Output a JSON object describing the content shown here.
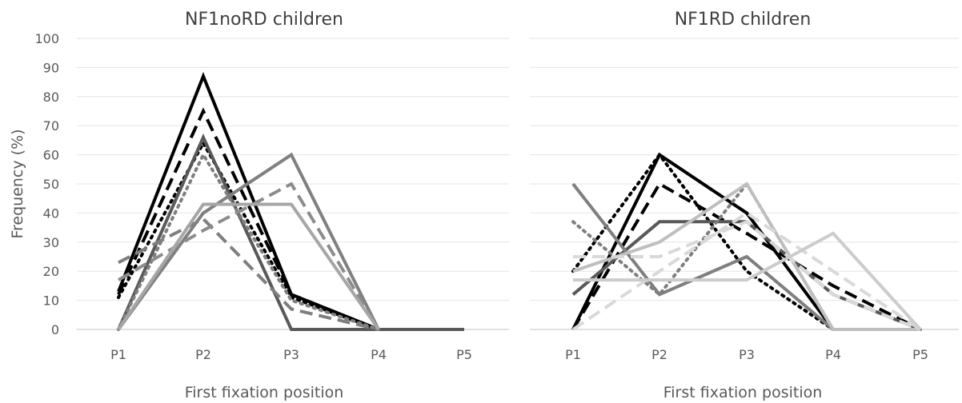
{
  "chart_data": [
    {
      "type": "line",
      "title": "NF1noRD children",
      "xlabel": "First fixation position",
      "ylabel": "Frequency (%)",
      "categories": [
        "P1",
        "P2",
        "P3",
        "P4",
        "P5"
      ],
      "ylim": [
        0,
        100
      ],
      "yticks": [
        "0",
        "10",
        "20",
        "30",
        "40",
        "50",
        "60",
        "70",
        "80",
        "90",
        "100"
      ],
      "grid": true,
      "series": [
        {
          "values": [
            13,
            87,
            12,
            0,
            0
          ],
          "color": "#000000",
          "dash": "solid"
        },
        {
          "values": [
            12,
            75,
            12,
            0,
            null
          ],
          "color": "#000000",
          "dash": "dashed"
        },
        {
          "values": [
            11,
            64,
            11,
            0,
            null
          ],
          "color": "#000000",
          "dash": "dotted"
        },
        {
          "values": [
            0,
            66,
            0,
            0,
            0
          ],
          "color": "#595959",
          "dash": "solid"
        },
        {
          "values": [
            23,
            38,
            7,
            0,
            null
          ],
          "color": "#7f7f7f",
          "dash": "dashed"
        },
        {
          "values": [
            0,
            60,
            10,
            0,
            null
          ],
          "color": "#7f7f7f",
          "dash": "dotted"
        },
        {
          "values": [
            0,
            40,
            60,
            0,
            null
          ],
          "color": "#808080",
          "dash": "solid"
        },
        {
          "values": [
            17,
            34,
            50,
            0,
            null
          ],
          "color": "#8c8c8c",
          "dash": "dashed"
        },
        {
          "values": [
            0,
            43,
            43,
            0,
            null
          ],
          "color": "#a6a6a6",
          "dash": "solid"
        }
      ]
    },
    {
      "type": "line",
      "title": "NF1RD children",
      "xlabel": "First fixation position",
      "ylabel": "",
      "categories": [
        "P1",
        "P2",
        "P3",
        "P4",
        "P5"
      ],
      "ylim": [
        0,
        100
      ],
      "grid": true,
      "series": [
        {
          "values": [
            0,
            60,
            40,
            0,
            0
          ],
          "color": "#000000",
          "dash": "solid"
        },
        {
          "values": [
            0,
            50,
            33,
            15,
            0
          ],
          "color": "#000000",
          "dash": "dashed"
        },
        {
          "values": [
            20,
            60,
            20,
            0,
            0
          ],
          "color": "#000000",
          "dash": "dotted"
        },
        {
          "values": [
            12,
            37,
            37,
            12,
            0
          ],
          "color": "#595959",
          "dash": "solid"
        },
        {
          "values": [
            50,
            12,
            25,
            0,
            0
          ],
          "color": "#7f7f7f",
          "dash": "solid"
        },
        {
          "values": [
            37,
            12,
            50,
            0,
            0
          ],
          "color": "#7f7f7f",
          "dash": "dotted"
        },
        {
          "values": [
            20,
            30,
            50,
            0,
            0
          ],
          "color": "#bfbfbf",
          "dash": "solid"
        },
        {
          "values": [
            25,
            25,
            37,
            12,
            0
          ],
          "color": "#d9d9d9",
          "dash": "dashed"
        },
        {
          "values": [
            0,
            20,
            40,
            20,
            0
          ],
          "color": "#d9d9d9",
          "dash": "dashed"
        },
        {
          "values": [
            17,
            17,
            17,
            33,
            0
          ],
          "color": "#cccccc",
          "dash": "solid"
        }
      ]
    }
  ]
}
